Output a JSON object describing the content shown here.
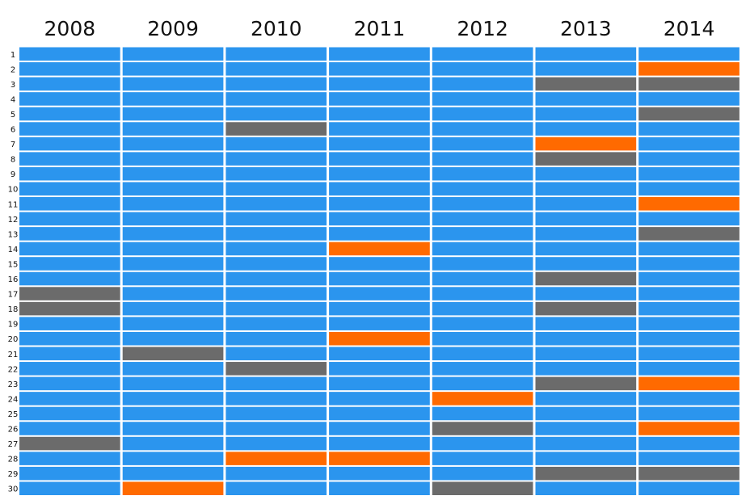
{
  "chart_data": {
    "type": "heatmap",
    "columns": [
      "2008",
      "2009",
      "2010",
      "2011",
      "2012",
      "2013",
      "2014"
    ],
    "rows": [
      "1",
      "2",
      "3",
      "4",
      "5",
      "6",
      "7",
      "8",
      "9",
      "10",
      "11",
      "12",
      "13",
      "14",
      "15",
      "16",
      "17",
      "18",
      "19",
      "20",
      "21",
      "22",
      "23",
      "24",
      "25",
      "26",
      "27",
      "28",
      "29",
      "30"
    ],
    "colors": {
      "blue": "#2b95ee",
      "gray": "#6b6b6b",
      "orange": "#ff6a00"
    },
    "cells": [
      [
        "blue",
        "blue",
        "blue",
        "blue",
        "blue",
        "blue",
        "blue"
      ],
      [
        "blue",
        "blue",
        "blue",
        "blue",
        "blue",
        "blue",
        "orange"
      ],
      [
        "blue",
        "blue",
        "blue",
        "blue",
        "blue",
        "gray",
        "gray"
      ],
      [
        "blue",
        "blue",
        "blue",
        "blue",
        "blue",
        "blue",
        "blue"
      ],
      [
        "blue",
        "blue",
        "blue",
        "blue",
        "blue",
        "blue",
        "gray"
      ],
      [
        "blue",
        "blue",
        "gray",
        "blue",
        "blue",
        "blue",
        "blue"
      ],
      [
        "blue",
        "blue",
        "blue",
        "blue",
        "blue",
        "orange",
        "blue"
      ],
      [
        "blue",
        "blue",
        "blue",
        "blue",
        "blue",
        "gray",
        "blue"
      ],
      [
        "blue",
        "blue",
        "blue",
        "blue",
        "blue",
        "blue",
        "blue"
      ],
      [
        "blue",
        "blue",
        "blue",
        "blue",
        "blue",
        "blue",
        "blue"
      ],
      [
        "blue",
        "blue",
        "blue",
        "blue",
        "blue",
        "blue",
        "orange"
      ],
      [
        "blue",
        "blue",
        "blue",
        "blue",
        "blue",
        "blue",
        "blue"
      ],
      [
        "blue",
        "blue",
        "blue",
        "blue",
        "blue",
        "blue",
        "gray"
      ],
      [
        "blue",
        "blue",
        "blue",
        "orange",
        "blue",
        "blue",
        "blue"
      ],
      [
        "blue",
        "blue",
        "blue",
        "blue",
        "blue",
        "blue",
        "blue"
      ],
      [
        "blue",
        "blue",
        "blue",
        "blue",
        "blue",
        "gray",
        "blue"
      ],
      [
        "gray",
        "blue",
        "blue",
        "blue",
        "blue",
        "blue",
        "blue"
      ],
      [
        "gray",
        "blue",
        "blue",
        "blue",
        "blue",
        "gray",
        "blue"
      ],
      [
        "blue",
        "blue",
        "blue",
        "blue",
        "blue",
        "blue",
        "blue"
      ],
      [
        "blue",
        "blue",
        "blue",
        "orange",
        "blue",
        "blue",
        "blue"
      ],
      [
        "blue",
        "gray",
        "blue",
        "blue",
        "blue",
        "blue",
        "blue"
      ],
      [
        "blue",
        "blue",
        "gray",
        "blue",
        "blue",
        "blue",
        "blue"
      ],
      [
        "blue",
        "blue",
        "blue",
        "blue",
        "blue",
        "gray",
        "orange"
      ],
      [
        "blue",
        "blue",
        "blue",
        "blue",
        "orange",
        "blue",
        "blue"
      ],
      [
        "blue",
        "blue",
        "blue",
        "blue",
        "blue",
        "blue",
        "blue"
      ],
      [
        "blue",
        "blue",
        "blue",
        "blue",
        "gray",
        "blue",
        "orange"
      ],
      [
        "gray",
        "blue",
        "blue",
        "blue",
        "blue",
        "blue",
        "blue"
      ],
      [
        "blue",
        "blue",
        "orange",
        "orange",
        "blue",
        "blue",
        "blue"
      ],
      [
        "blue",
        "blue",
        "blue",
        "blue",
        "blue",
        "gray",
        "gray"
      ],
      [
        "blue",
        "orange",
        "blue",
        "blue",
        "gray",
        "blue",
        "blue"
      ]
    ]
  }
}
